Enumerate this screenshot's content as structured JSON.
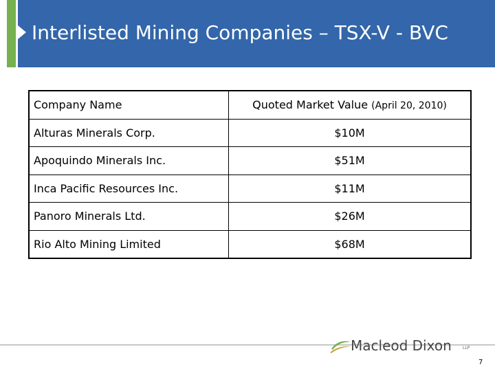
{
  "slide": {
    "title": "Interlisted Mining Companies – TSX-V - BVC",
    "page_number": "7"
  },
  "table": {
    "headers": {
      "company": "Company Name",
      "value_main": "Quoted Market Value",
      "value_note": "(April 20, 2010)"
    },
    "rows": [
      {
        "company": "Alturas Minerals Corp.",
        "value": "$10M"
      },
      {
        "company": "Apoquindo Minerals Inc.",
        "value": "$51M"
      },
      {
        "company": "Inca Pacific Resources Inc.",
        "value": "$11M"
      },
      {
        "company": "Panoro Minerals Ltd.",
        "value": "$26M"
      },
      {
        "company": "Rio Alto Mining Limited",
        "value": "$68M"
      }
    ]
  },
  "logo": {
    "name": "Macleod Dixon",
    "suffix": "LLP"
  },
  "colors": {
    "header_blue": "#3366aa",
    "accent_green": "#77b050"
  }
}
